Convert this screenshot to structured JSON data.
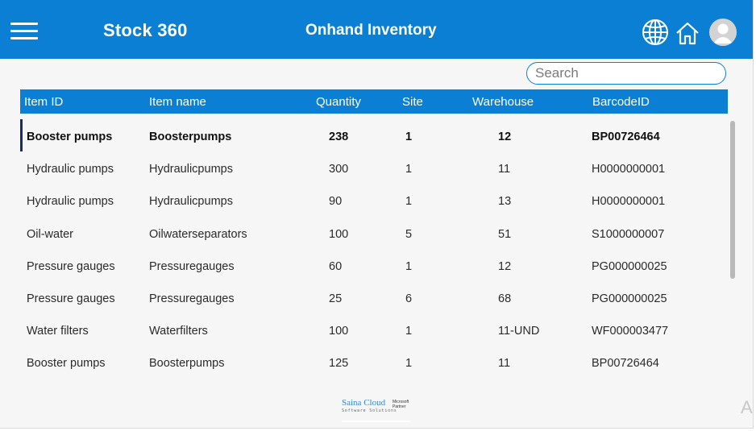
{
  "header": {
    "app_title": "Stock 360",
    "page_title": "Onhand Inventory",
    "icons": [
      "menu-icon",
      "globe-icon",
      "home-icon",
      "user-avatar-icon"
    ]
  },
  "search": {
    "placeholder": "Search",
    "value": ""
  },
  "table": {
    "columns": [
      "Item ID",
      "Item name",
      "Quantity",
      "Site",
      "Warehouse",
      "BarcodeID"
    ],
    "rows": [
      {
        "item_id": "Booster pumps",
        "item_name": "Boosterpumps",
        "quantity": "238",
        "site": "1",
        "warehouse": "12",
        "barcode": "BP00726464",
        "selected": true
      },
      {
        "item_id": "Hydraulic pumps",
        "item_name": "Hydraulicpumps",
        "quantity": "300",
        "site": "1",
        "warehouse": "11",
        "barcode": "H0000000001"
      },
      {
        "item_id": "Hydraulic pumps",
        "item_name": "Hydraulicpumps",
        "quantity": "90",
        "site": "1",
        "warehouse": "13",
        "barcode": "H0000000001"
      },
      {
        "item_id": "Oil-water",
        "item_name": "Oilwaterseparators",
        "quantity": "100",
        "site": "5",
        "warehouse": "51",
        "barcode": "S1000000007"
      },
      {
        "item_id": "Pressure gauges",
        "item_name": "Pressuregauges",
        "quantity": "60",
        "site": "1",
        "warehouse": "12",
        "barcode": "PG000000025"
      },
      {
        "item_id": "Pressure gauges",
        "item_name": "Pressuregauges",
        "quantity": "25",
        "site": "6",
        "warehouse": "68",
        "barcode": "PG000000025"
      },
      {
        "item_id": "Water filters",
        "item_name": "Waterfilters",
        "quantity": "100",
        "site": "1",
        "warehouse": "11-UND",
        "barcode": "WF000003477"
      },
      {
        "item_id": "Booster pumps",
        "item_name": "Boosterpumps",
        "quantity": "125",
        "site": "1",
        "warehouse": "11",
        "barcode": "BP00726464"
      }
    ]
  },
  "footer": {
    "logo_brand": "Saina Cloud",
    "logo_sub": "Software Solutions",
    "logo_partner_line1": "Microsoft",
    "logo_partner_line2": "Partner",
    "corner_text": "A"
  },
  "colors": {
    "header_bg": "#0a7fd4",
    "selected_marker": "#1a2a6c"
  }
}
